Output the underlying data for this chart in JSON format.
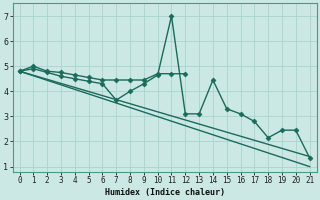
{
  "xlabel": "Humidex (Indice chaleur)",
  "xlim": [
    -0.5,
    21.5
  ],
  "ylim": [
    0.8,
    7.5
  ],
  "xticks": [
    0,
    1,
    2,
    3,
    4,
    5,
    6,
    7,
    8,
    9,
    10,
    11,
    12,
    13,
    14,
    15,
    16,
    17,
    18,
    19,
    20,
    21
  ],
  "yticks": [
    1,
    2,
    3,
    4,
    5,
    6,
    7
  ],
  "background_color": "#cce8e4",
  "plot_bg_color": "#cce8e4",
  "grid_color": "#aad4ce",
  "line_color": "#1a6b5a",
  "border_color": "#4a9a8a",
  "series": [
    {
      "name": "line1_flat",
      "x": [
        0,
        1,
        2,
        3,
        4,
        5,
        6,
        7,
        8,
        9,
        10,
        11,
        12
      ],
      "y": [
        4.8,
        5.0,
        4.8,
        4.75,
        4.65,
        4.55,
        4.45,
        4.45,
        4.45,
        4.45,
        4.7,
        4.7,
        4.7
      ],
      "marker": "D",
      "markersize": 2.5,
      "linewidth": 1.0
    },
    {
      "name": "line2_jagged",
      "x": [
        0,
        1,
        2,
        3,
        4,
        5,
        6,
        7,
        8,
        9,
        10,
        11,
        12,
        13,
        14,
        15,
        16,
        17,
        18,
        19,
        20,
        21
      ],
      "y": [
        4.8,
        4.9,
        4.75,
        4.6,
        4.5,
        4.4,
        4.3,
        3.65,
        4.0,
        4.3,
        4.65,
        7.0,
        3.1,
        3.1,
        4.45,
        3.3,
        3.1,
        2.8,
        2.15,
        2.45,
        2.45,
        1.35
      ],
      "marker": "D",
      "markersize": 2.5,
      "linewidth": 1.0
    },
    {
      "name": "line3_diagonal",
      "x": [
        0,
        21
      ],
      "y": [
        4.8,
        1.4
      ],
      "marker": null,
      "markersize": 0,
      "linewidth": 1.0
    },
    {
      "name": "line4_diagonal",
      "x": [
        0,
        21
      ],
      "y": [
        4.8,
        1.0
      ],
      "marker": null,
      "markersize": 0,
      "linewidth": 1.0
    }
  ]
}
